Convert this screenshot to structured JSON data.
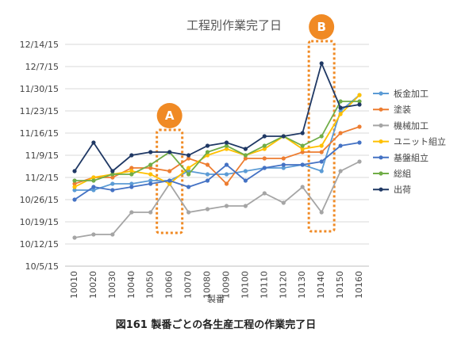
{
  "chart_data": {
    "type": "line",
    "title": "工程別作業完了日",
    "xlabel": "製番",
    "ylabel": "",
    "caption": "図161 製番ごとの各生産工程の作業完了日",
    "categories": [
      "10010",
      "10020",
      "10030",
      "10040",
      "10050",
      "10060",
      "10070",
      "10080",
      "10090",
      "10100",
      "10110",
      "10120",
      "10130",
      "10140",
      "10150",
      "10160"
    ],
    "y_ticks": [
      "10/5/15",
      "10/12/15",
      "10/19/15",
      "10/26/15",
      "11/2/15",
      "11/9/15",
      "11/16/15",
      "11/23/15",
      "11/30/15",
      "12/7/15",
      "12/14/15"
    ],
    "y_start": "10/5/15",
    "y_step_days": 7,
    "series": [
      {
        "name": "板金加工",
        "color": "#5B9BD5",
        "values": [
          "10/29/15",
          "10/29/15",
          "10/31/15",
          "10/31/15",
          "11/1/15",
          "11/1/15",
          "11/4/15",
          "11/3/15",
          "11/3/15",
          "11/4/15",
          "11/5/15",
          "11/5/15",
          "11/6/15",
          "11/4/15",
          "11/23/15",
          "11/28/15"
        ]
      },
      {
        "name": "塗装",
        "color": "#ED7D31",
        "values": [
          "10/31/15",
          "11/2/15",
          "11/2/15",
          "11/5/15",
          "11/5/15",
          "11/4/15",
          "11/8/15",
          "11/6/15",
          "10/31/15",
          "11/8/15",
          "11/8/15",
          "11/8/15",
          "11/10/15",
          "11/10/15",
          "11/16/15",
          "11/18/15"
        ]
      },
      {
        "name": "機械加工",
        "color": "#A5A5A5",
        "values": [
          "10/14/15",
          "10/15/15",
          "10/15/15",
          "10/22/15",
          "10/22/15",
          "10/31/15",
          "10/22/15",
          "10/23/15",
          "10/24/15",
          "10/24/15",
          "10/28/15",
          "10/25/15",
          "10/30/15",
          "10/22/15",
          "11/4/15",
          "11/7/15"
        ]
      },
      {
        "name": "ユニット組立",
        "color": "#FFC000",
        "values": [
          "10/30/15",
          "11/2/15",
          "11/3/15",
          "11/4/15",
          "11/3/15",
          "10/31/15",
          "11/5/15",
          "11/9/15",
          "11/11/15",
          "11/9/15",
          "11/11/15",
          "11/15/15",
          "11/11/15",
          "11/12/15",
          "11/22/15",
          "11/28/15"
        ]
      },
      {
        "name": "基盤組立",
        "color": "#4472C4",
        "values": [
          "10/26/15",
          "10/30/15",
          "10/29/15",
          "10/30/15",
          "10/31/15",
          "11/1/15",
          "10/30/15",
          "11/1/15",
          "11/6/15",
          "11/1/15",
          "11/5/15",
          "11/6/15",
          "11/6/15",
          "11/7/15",
          "11/12/15",
          "11/13/15"
        ]
      },
      {
        "name": "総組",
        "color": "#70AD47",
        "values": [
          "11/1/15",
          "11/1/15",
          "11/3/15",
          "11/3/15",
          "11/6/15",
          "11/10/15",
          "11/3/15",
          "11/10/15",
          "11/12/15",
          "11/9/15",
          "11/12/15",
          "11/15/15",
          "11/12/15",
          "11/15/15",
          "11/26/15",
          "11/26/15"
        ]
      },
      {
        "name": "出荷",
        "color": "#1F3864",
        "values": [
          "11/4/15",
          "11/13/15",
          "11/4/15",
          "11/9/15",
          "11/10/15",
          "11/10/15",
          "11/9/15",
          "11/12/15",
          "11/13/15",
          "11/11/15",
          "11/15/15",
          "11/15/15",
          "11/16/15",
          "12/8/15",
          "11/24/15",
          "11/25/15"
        ]
      }
    ],
    "annotations": [
      {
        "label": "A",
        "category": "10060"
      },
      {
        "label": "B",
        "category": "10140"
      }
    ],
    "grid": true,
    "legend_position": "right"
  }
}
